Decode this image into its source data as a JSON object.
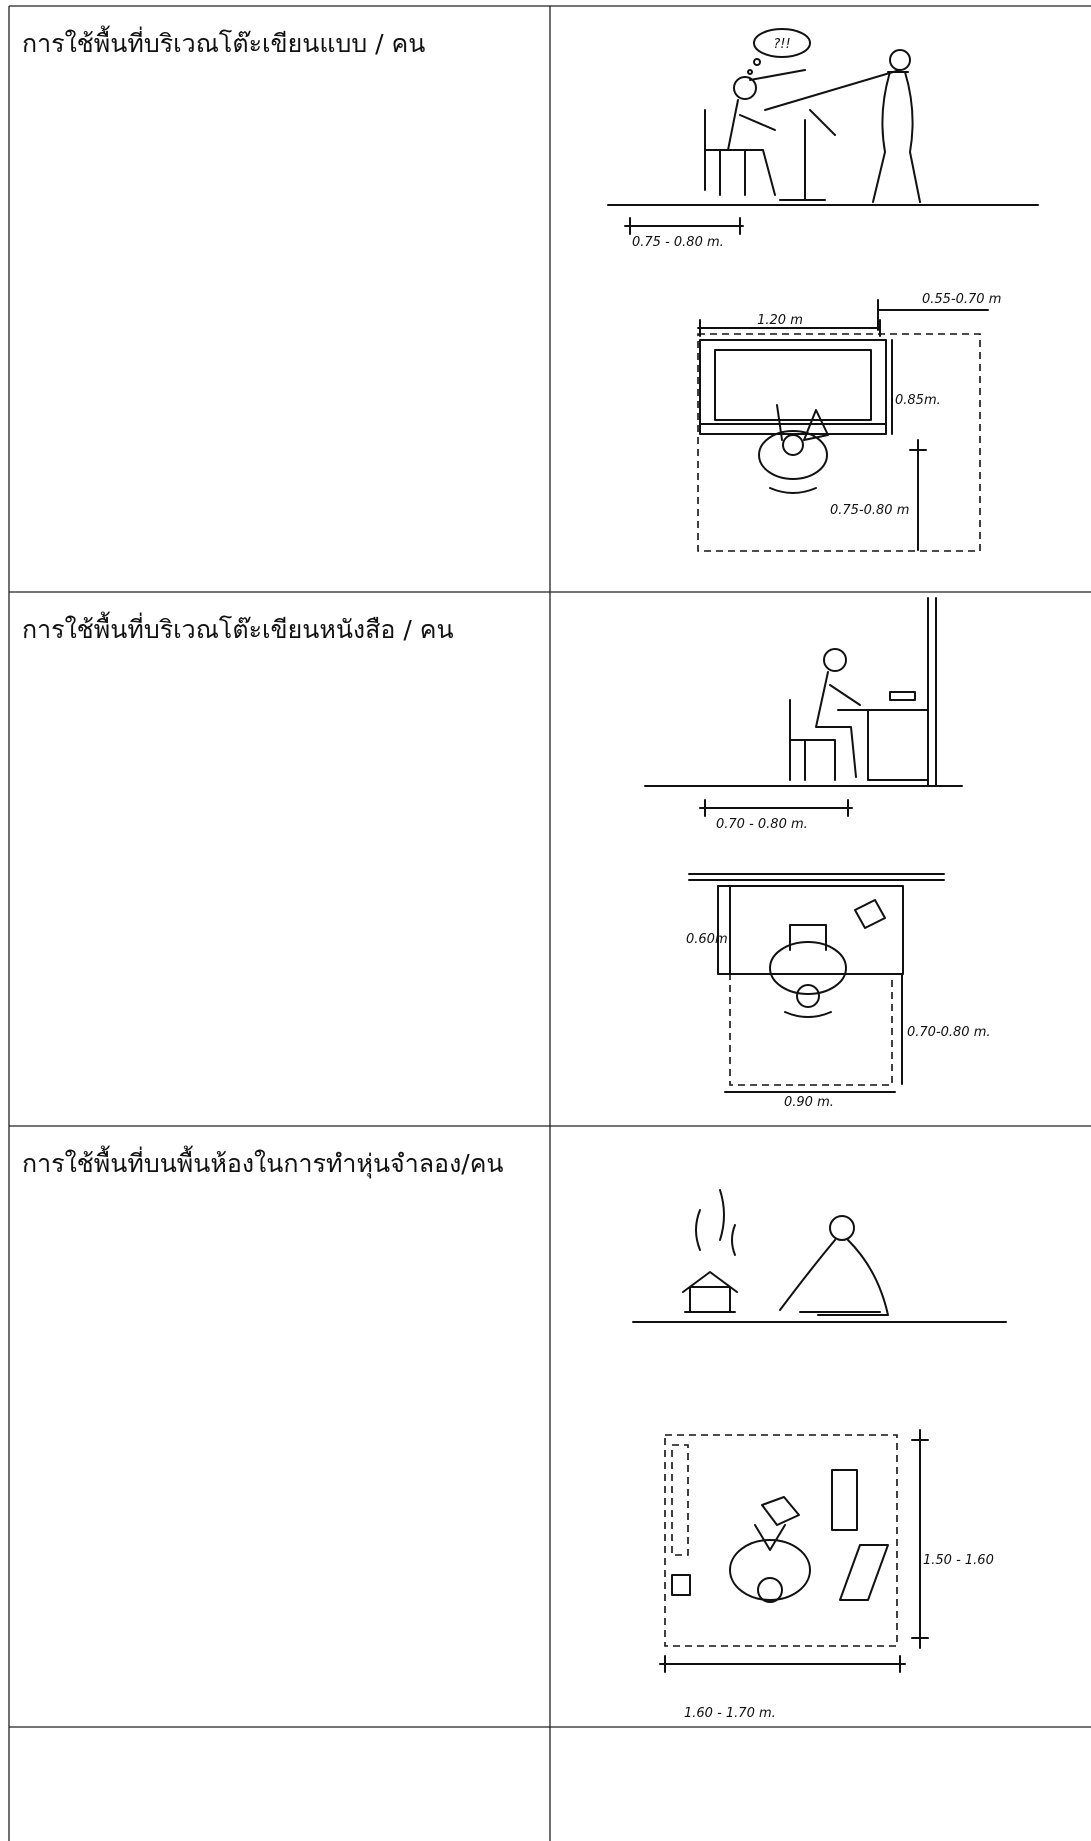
{
  "table": {
    "rows": [
      {
        "label": "การใช้พื้นที่บริเวณโต๊ะเขียนแบบ / คน",
        "figure": {
          "thought": "?!!",
          "elevation_width": "0.75 - 0.80 m.",
          "desk_width": "1.20 m",
          "side_clearance": "0.55-0.70 m",
          "desk_depth": "0.85m.",
          "seat_depth": "0.75-0.80 m"
        }
      },
      {
        "label": "การใช้พื้นที่บริเวณโต๊ะเขียนหนังสือ / คน",
        "figure": {
          "elevation_width": "0.70 - 0.80 m.",
          "desk_depth": "0.60m",
          "seat_depth": "0.70-0.80 m.",
          "plan_width": "0.90 m."
        }
      },
      {
        "label": "การใช้พื้นที่บนพื้นห้องในการทำหุ่นจำลอง/คน",
        "figure": {
          "plan_depth": "1.50 - 1.60",
          "plan_width": "1.60 - 1.70 m."
        }
      }
    ]
  }
}
